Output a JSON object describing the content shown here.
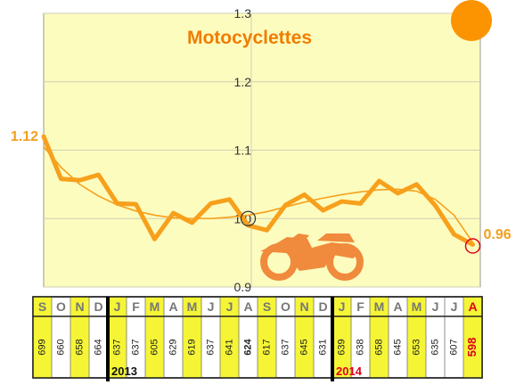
{
  "colors": {
    "plot_bg": "#fdfcbf",
    "series": "#f7a01c",
    "trend": "#f7a01c",
    "title": "#f07d00",
    "moto_icon": "#f08a3c",
    "sun": "#fb9400",
    "highlight": "#f5f536",
    "end_marker": "#e0001a"
  },
  "icons": [
    "motorcycle-icon",
    "sun-icon"
  ],
  "chart_data": {
    "type": "line",
    "title": "Motocyclettes",
    "ylim": [
      0.9,
      1.3
    ],
    "yticks": [
      "0.9",
      "1.0",
      "1.1",
      "1.2",
      "1.3"
    ],
    "grid": true,
    "categories": [
      "S",
      "O",
      "N",
      "D",
      "J",
      "F",
      "M",
      "A",
      "M",
      "J",
      "J",
      "A",
      "S",
      "O",
      "N",
      "D",
      "J",
      "F",
      "M",
      "A",
      "M",
      "J",
      "J",
      "A"
    ],
    "counts": [
      "699",
      "660",
      "658",
      "664",
      "637",
      "637",
      "605",
      "629",
      "619",
      "637",
      "641",
      "624",
      "617",
      "637",
      "645",
      "631",
      "639",
      "638",
      "658",
      "645",
      "653",
      "635",
      "607",
      "598"
    ],
    "bold_counts": [
      11
    ],
    "highlighted_months": [
      0,
      2,
      4,
      6,
      8,
      10,
      12,
      14,
      16,
      18,
      20,
      23
    ],
    "years": [
      {
        "label": "2013",
        "start_index": 4
      },
      {
        "label": "2014",
        "start_index": 16
      }
    ],
    "series": [
      {
        "values": [
          1.12,
          1.058,
          1.056,
          1.064,
          1.022,
          1.021,
          0.97,
          1.008,
          0.994,
          1.022,
          1.028,
          0.99,
          0.983,
          1.02,
          1.035,
          1.012,
          1.025,
          1.022,
          1.055,
          1.037,
          1.05,
          1.019,
          0.977,
          0.962
        ]
      },
      {
        "style": "trend",
        "values": [
          1.105,
          1.075,
          1.05,
          1.033,
          1.02,
          1.011,
          1.005,
          1.001,
          1.0,
          1.0,
          1.002,
          1.005,
          1.01,
          1.017,
          1.024,
          1.03,
          1.035,
          1.039,
          1.042,
          1.043,
          1.04,
          1.028,
          1.005,
          0.965
        ]
      }
    ],
    "annotations": [
      {
        "text": "1.12",
        "point_index": 0,
        "value": 1.12
      },
      {
        "text": "0.96",
        "point_index": 23,
        "value": 0.96,
        "marker": "circle-red"
      },
      {
        "point_index": 11,
        "value": 1.0,
        "marker": "circle-black"
      }
    ]
  }
}
